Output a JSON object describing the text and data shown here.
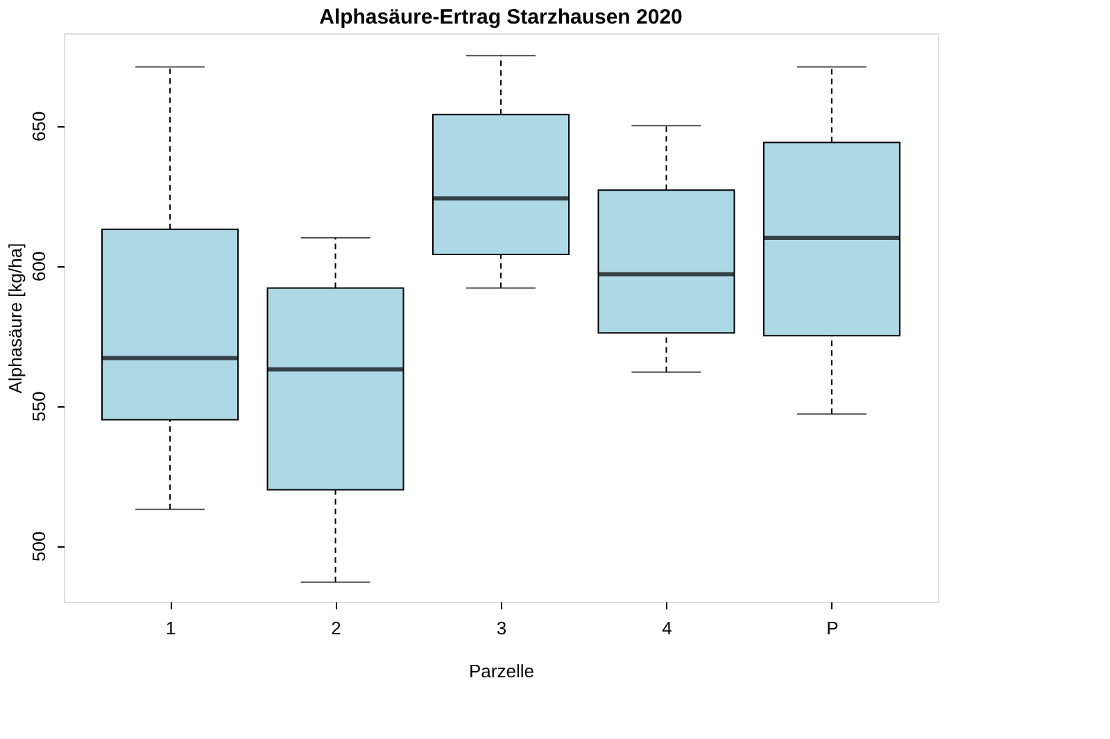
{
  "chart_data": {
    "type": "box",
    "title": "Alphasäure-Ertrag Starzhausen 2020",
    "xlabel": "Parzelle",
    "ylabel": "Alphasäure [kg/ha]",
    "categories": [
      "1",
      "2",
      "3",
      "4",
      "P"
    ],
    "boxes": [
      {
        "low": 513,
        "q1": 545,
        "median": 567,
        "q3": 613,
        "high": 671
      },
      {
        "low": 487,
        "q1": 520,
        "median": 563,
        "q3": 592,
        "high": 610
      },
      {
        "low": 592,
        "q1": 604,
        "median": 624,
        "q3": 654,
        "high": 675
      },
      {
        "low": 562,
        "q1": 576,
        "median": 597,
        "q3": 627,
        "high": 650
      },
      {
        "low": 547,
        "q1": 575,
        "median": 610,
        "q3": 644,
        "high": 671
      }
    ],
    "color": "#add8e6",
    "ylim": [
      480,
      683
    ],
    "yticks": [
      500,
      550,
      600,
      650
    ],
    "grid": false
  }
}
